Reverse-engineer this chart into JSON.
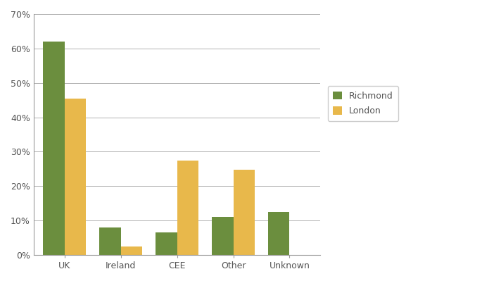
{
  "categories": [
    "UK",
    "Ireland",
    "CEE",
    "Other",
    "Unknown"
  ],
  "richmond": [
    0.62,
    0.08,
    0.065,
    0.11,
    0.125
  ],
  "london": [
    0.455,
    0.025,
    0.275,
    0.248,
    0.0
  ],
  "richmond_color": "#6b8e3e",
  "london_color": "#e8b84b",
  "richmond_label": "Richmond",
  "london_label": "London",
  "ylim": [
    0,
    0.7
  ],
  "yticks": [
    0.0,
    0.1,
    0.2,
    0.3,
    0.4,
    0.5,
    0.6,
    0.7
  ],
  "bar_width": 0.38,
  "background_color": "#ffffff",
  "grid_color": "#b0b0b0",
  "tick_color": "#555555",
  "spine_color": "#999999"
}
